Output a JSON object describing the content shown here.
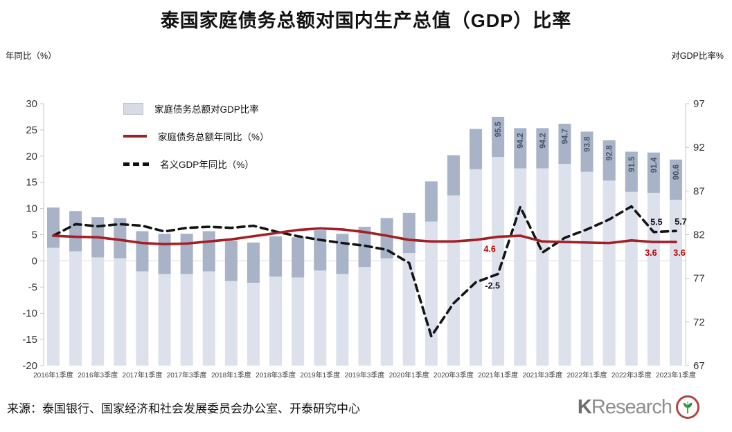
{
  "title": "泰国家庭债务总额对国内生产总值（GDP）比率",
  "axes": {
    "left_title": "年同比（%）",
    "right_title": "对GDP比率%",
    "left_ticks": [
      "30",
      "25",
      "20",
      "15",
      "10",
      "5",
      "0",
      "-5",
      "-10",
      "-15",
      "-20"
    ],
    "right_ticks": [
      "97",
      "92",
      "87",
      "82",
      "77",
      "72",
      "67"
    ]
  },
  "legend": {
    "items": [
      {
        "label": "家庭债务总额对GDP比率",
        "type": "bar"
      },
      {
        "label": "家庭债务总额年同比（%）",
        "type": "line"
      },
      {
        "label": "名义GDP年同比（%）",
        "type": "dashed"
      }
    ]
  },
  "chart_data": {
    "type": "combo",
    "title": "泰国家庭债务总额对国内生产总值（GDP）比率",
    "left_axis": {
      "label": "年同比（%）",
      "min": -20,
      "max": 30,
      "step": 5
    },
    "right_axis": {
      "label": "对GDP比率%",
      "min": 67,
      "max": 97,
      "step": 5
    },
    "grid_at_left_value": 0,
    "x_tick_labels": [
      "2016年1季度",
      "2016年3季度",
      "2017年1季度",
      "2017年3季度",
      "2018年1季度",
      "2018年3季度",
      "2019年1季度",
      "2019年3季度",
      "2020年1季度",
      "2020年3季度",
      "2021年1季度",
      "2021年3季度",
      "2022年1季度",
      "2022年3季度",
      "2023年1季度"
    ],
    "quarters": [
      "2016年1季度",
      "2016年2季度",
      "2016年3季度",
      "2016年4季度",
      "2017年1季度",
      "2017年2季度",
      "2017年3季度",
      "2017年4季度",
      "2018年1季度",
      "2018年2季度",
      "2018年3季度",
      "2018年4季度",
      "2019年1季度",
      "2019年2季度",
      "2019年3季度",
      "2019年4季度",
      "2020年1季度",
      "2020年2季度",
      "2020年3季度",
      "2020年4季度",
      "2021年1季度",
      "2021年2季度",
      "2021年3季度",
      "2021年4季度",
      "2022年1季度",
      "2022年2季度",
      "2022年3季度",
      "2022年4季度",
      "2023年1季度"
    ],
    "series": [
      {
        "name": "家庭债务总额对GDP比率",
        "type": "bar",
        "axis": "right",
        "values": [
          85.1,
          84.7,
          84.0,
          83.9,
          82.4,
          82.1,
          82.1,
          82.4,
          81.3,
          81.1,
          81.8,
          81.7,
          82.5,
          82.1,
          82.9,
          83.9,
          84.5,
          88.1,
          91.1,
          94.1,
          95.5,
          94.2,
          94.2,
          94.7,
          93.8,
          92.8,
          91.5,
          91.4,
          90.6
        ],
        "bar_labels": [
          "",
          "",
          "",
          "",
          "",
          "",
          "",
          "",
          "",
          "",
          "",
          "",
          "",
          "",
          "",
          "",
          "",
          "",
          "",
          "",
          "95.5",
          "94.2",
          "94.2",
          "94.7",
          "93.8",
          "92.8",
          "91.5",
          "91.4",
          "90.6"
        ]
      },
      {
        "name": "家庭债务总额年同比（%）",
        "type": "line",
        "axis": "left",
        "values": [
          4.8,
          4.6,
          4.5,
          4.0,
          3.4,
          3.2,
          3.3,
          3.7,
          4.1,
          4.7,
          5.3,
          5.9,
          6.2,
          6.0,
          5.5,
          4.8,
          4.0,
          3.7,
          3.7,
          4.0,
          4.6,
          4.8,
          3.7,
          3.6,
          3.5,
          3.4,
          3.9,
          3.6,
          3.6
        ],
        "point_labels": [
          {
            "index": 20,
            "text": "4.6",
            "dx": -12,
            "dy": 22
          },
          {
            "index": 27,
            "text": "3.6",
            "dx": -4,
            "dy": 20
          },
          {
            "index": 28,
            "text": "3.6",
            "dx": 5,
            "dy": 20
          }
        ]
      },
      {
        "name": "名义GDP年同比（%）",
        "type": "dashed",
        "axis": "left",
        "values": [
          4.8,
          7.0,
          6.6,
          7.0,
          6.7,
          5.6,
          6.3,
          6.5,
          6.3,
          6.7,
          5.6,
          4.7,
          4.0,
          3.4,
          2.9,
          2.1,
          -0.4,
          -14.4,
          -8.1,
          -4.1,
          -2.5,
          10.3,
          1.6,
          4.4,
          6.0,
          7.9,
          10.4,
          5.5,
          5.7
        ],
        "point_labels": [
          {
            "index": 20,
            "text": "-2.5",
            "dx": -8,
            "dy": 21
          },
          {
            "index": 27,
            "text": "5.5",
            "dx": 4,
            "dy": -10
          },
          {
            "index": 28,
            "text": "5.7",
            "dx": 7,
            "dy": -9
          }
        ]
      }
    ]
  },
  "footer": {
    "source": "来源：泰国银行、国家经济和社会发展委员会办公室、开泰研究中心",
    "logo_k": "K",
    "logo_rest": "Research"
  },
  "colors": {
    "bar_light": "#dce1eb",
    "bar_cap": "#a9b3c8",
    "red_line": "#a32026",
    "dashed_line": "#141414",
    "bar_label": "#44546a",
    "red_label": "#c00000",
    "black_label": "#111111",
    "grid": "#d9d9d9",
    "axis": "#c4c4c4",
    "tick_text": "#333333",
    "x_tick_text": "#3f3f3f",
    "logo_leaf": "#33a04a"
  }
}
